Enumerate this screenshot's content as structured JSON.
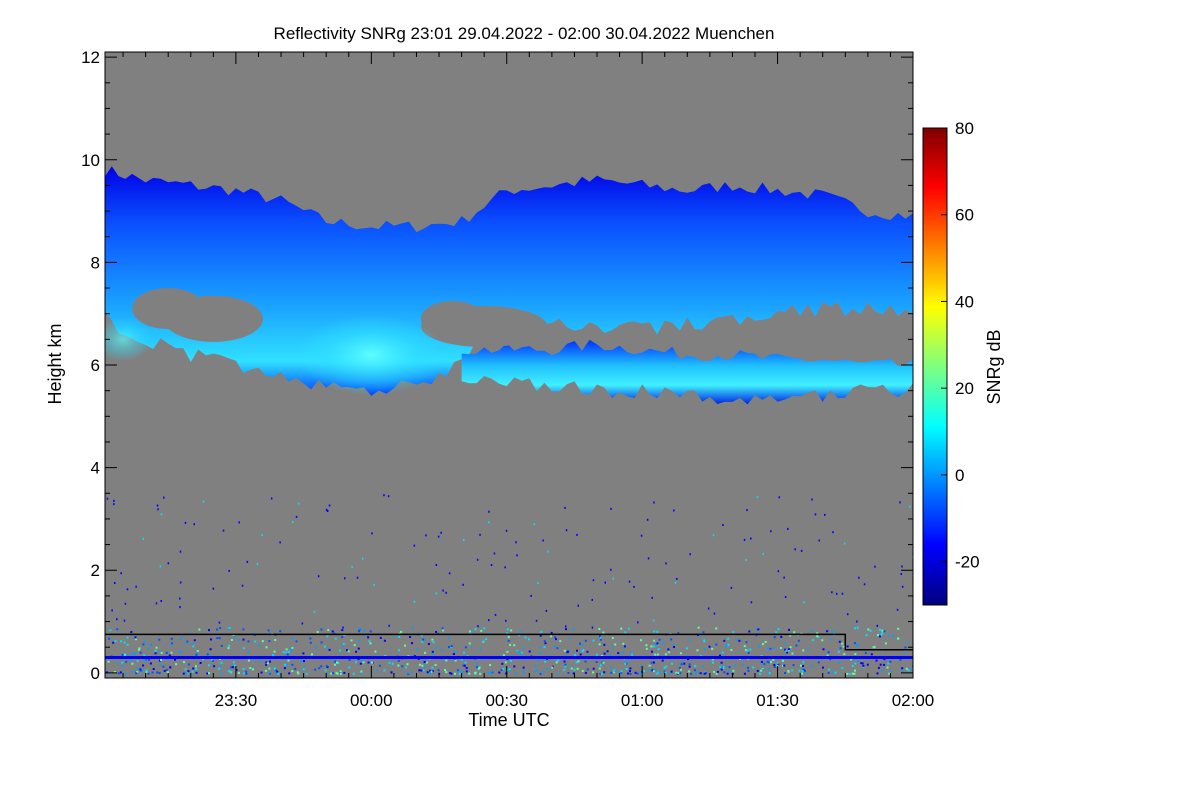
{
  "chart_data": {
    "type": "heatmap",
    "title": "Reflectivity SNRg   23:01 29.04.2022 - 02:00 30.04.2022 Muenchen",
    "xlabel": "Time UTC",
    "ylabel": "Height km",
    "x_range_minutes": [
      -59,
      120
    ],
    "x_ticks": [
      {
        "label": "23:30",
        "value": -30
      },
      {
        "label": "00:00",
        "value": 0
      },
      {
        "label": "00:30",
        "value": 30
      },
      {
        "label": "01:00",
        "value": 60
      },
      {
        "label": "01:30",
        "value": 90
      },
      {
        "label": "02:00",
        "value": 120
      }
    ],
    "ylim": [
      -0.1,
      12.1
    ],
    "y_ticks": [
      {
        "label": "0",
        "value": 0
      },
      {
        "label": "2",
        "value": 2
      },
      {
        "label": "4",
        "value": 4
      },
      {
        "label": "6",
        "value": 6
      },
      {
        "label": "8",
        "value": 8
      },
      {
        "label": "10",
        "value": 10
      },
      {
        "label": "12",
        "value": 12
      }
    ],
    "no_signal_color": "#808080",
    "colorbar": {
      "label": "SNRg dB",
      "range": [
        -30,
        80
      ],
      "ticks": [
        {
          "label": "80",
          "value": 80
        },
        {
          "label": "60",
          "value": 60
        },
        {
          "label": "40",
          "value": 40
        },
        {
          "label": "20",
          "value": 20
        },
        {
          "label": "0",
          "value": 0
        },
        {
          "label": "-20",
          "value": -20
        }
      ],
      "colors": [
        "#00007f",
        "#0000ff",
        "#007fff",
        "#00ffff",
        "#7fff7f",
        "#ffff00",
        "#ff7f00",
        "#ff0000",
        "#7f0000"
      ]
    },
    "cloud_layers": [
      {
        "name": "upper",
        "x": [
          -59,
          -50,
          -40,
          -30,
          -20,
          -10,
          0,
          10,
          20,
          30,
          40,
          50,
          60,
          70,
          80,
          90,
          100,
          110,
          120
        ],
        "top": [
          9.8,
          9.6,
          9.5,
          9.4,
          9.2,
          8.8,
          8.7,
          8.7,
          8.8,
          9.4,
          9.5,
          9.6,
          9.5,
          9.4,
          9.5,
          9.4,
          9.3,
          9.0,
          8.9
        ],
        "base": [
          6.9,
          6.5,
          6.2,
          6.0,
          5.8,
          5.6,
          5.5,
          5.6,
          6.0,
          7.0,
          6.8,
          6.7,
          6.7,
          6.8,
          6.9,
          7.0,
          7.1,
          7.1,
          7.0
        ]
      },
      {
        "name": "lower",
        "x": [
          20,
          30,
          40,
          50,
          60,
          70,
          80,
          90,
          100,
          110,
          120
        ],
        "top": [
          6.3,
          6.3,
          6.3,
          6.4,
          6.3,
          6.2,
          6.2,
          6.1,
          6.1,
          6.0,
          6.0
        ],
        "base": [
          5.6,
          5.7,
          5.6,
          5.5,
          5.5,
          5.4,
          5.3,
          5.3,
          5.4,
          5.5,
          5.5
        ]
      }
    ],
    "lines": [
      {
        "name": "black-line",
        "color": "#000000",
        "x": [
          -59,
          105,
          105,
          120
        ],
        "y": [
          0.75,
          0.75,
          0.45,
          0.45
        ]
      },
      {
        "name": "blue-line",
        "color": "#0000ff",
        "x": [
          -59,
          120
        ],
        "y": [
          0.3,
          0.3
        ]
      }
    ]
  }
}
